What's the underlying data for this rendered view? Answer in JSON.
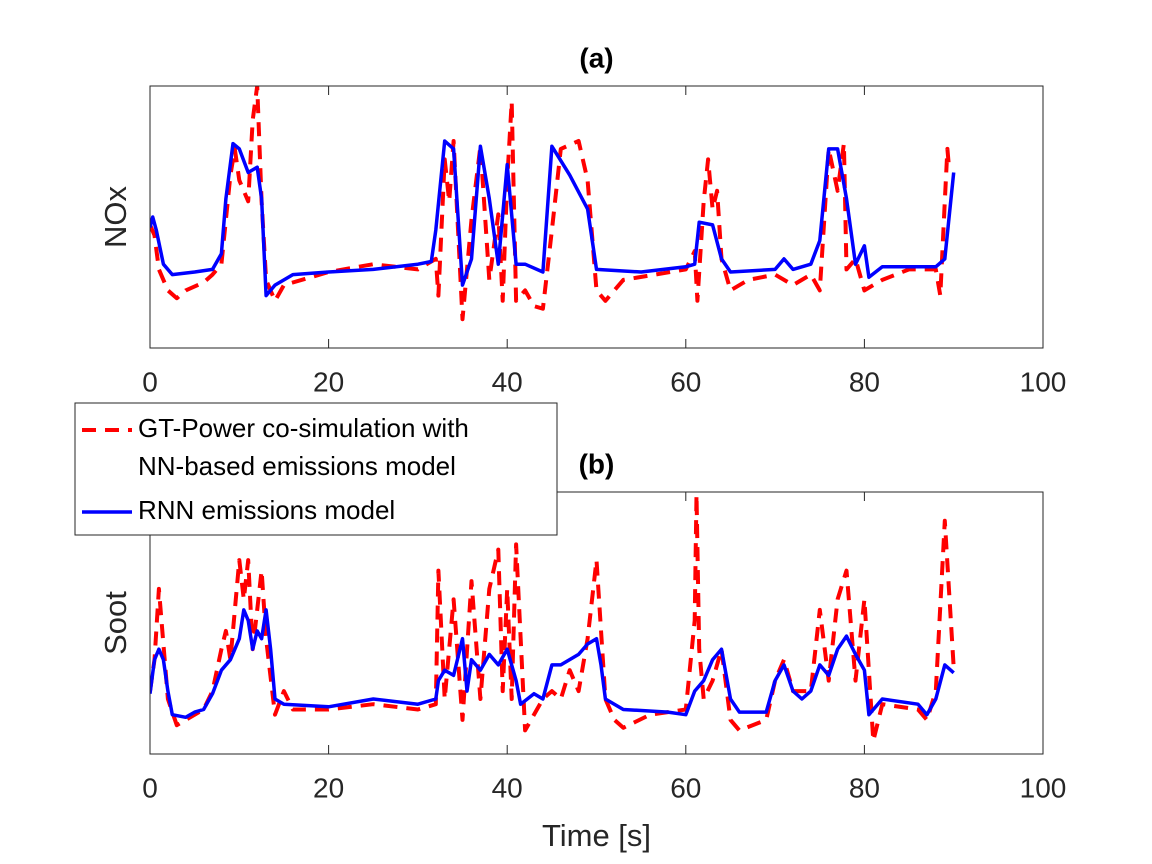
{
  "chart_data": [
    {
      "type": "line",
      "title": "(a)",
      "ylabel": "NOx",
      "xlim": [
        0,
        100
      ],
      "xticks": [
        0,
        20,
        40,
        60,
        80,
        100
      ],
      "ylim": [
        0,
        1
      ],
      "series": [
        {
          "name": "GT-Power co-simulation with\nNN-based emissions model",
          "color": "#ff0000",
          "dashed": true,
          "x": [
            0,
            0.5,
            1,
            2,
            3,
            4,
            6,
            7,
            8,
            9,
            9.5,
            10,
            11,
            11.5,
            12,
            12.5,
            13,
            14,
            15,
            20,
            25,
            30,
            32,
            32.3,
            33,
            33.5,
            34,
            35,
            36,
            37,
            38,
            39,
            39.5,
            40,
            40.5,
            41,
            42,
            43,
            44,
            45,
            46,
            48,
            49,
            50,
            51,
            53,
            60,
            61,
            61.3,
            62,
            62.5,
            63,
            63.5,
            64,
            65,
            67,
            70,
            72,
            74,
            75,
            76,
            77,
            77.7,
            78,
            79,
            80,
            81,
            82,
            85,
            88,
            88.5,
            89,
            89.3,
            89.5
          ],
          "values": [
            0.47,
            0.43,
            0.3,
            0.22,
            0.19,
            0.22,
            0.25,
            0.28,
            0.32,
            0.66,
            0.76,
            0.64,
            0.56,
            0.87,
            1.0,
            0.56,
            0.26,
            0.18,
            0.24,
            0.29,
            0.32,
            0.3,
            0.34,
            0.2,
            0.72,
            0.56,
            0.79,
            0.11,
            0.49,
            0.77,
            0.26,
            0.51,
            0.18,
            0.64,
            0.94,
            0.18,
            0.22,
            0.16,
            0.15,
            0.45,
            0.76,
            0.79,
            0.64,
            0.22,
            0.18,
            0.26,
            0.3,
            0.37,
            0.18,
            0.56,
            0.72,
            0.53,
            0.6,
            0.34,
            0.22,
            0.26,
            0.28,
            0.24,
            0.28,
            0.22,
            0.76,
            0.6,
            0.78,
            0.3,
            0.34,
            0.22,
            0.24,
            0.26,
            0.3,
            0.3,
            0.2,
            0.56,
            0.76,
            0.68
          ]
        },
        {
          "name": "RNN emissions model",
          "color": "#0000ff",
          "dashed": false,
          "x": [
            0,
            0.3,
            0.7,
            1.5,
            2.5,
            5,
            7,
            8,
            8.5,
            9.3,
            10,
            11,
            12,
            12.5,
            13,
            14,
            16,
            20,
            25,
            30,
            31.5,
            32,
            33,
            34,
            35,
            36,
            37,
            38,
            39,
            40,
            41,
            42,
            44,
            45,
            47,
            49,
            50,
            55,
            60,
            61,
            61.5,
            63,
            64,
            65,
            70,
            71,
            72,
            74,
            75,
            76,
            77,
            78,
            79,
            80,
            80.5,
            82,
            85,
            88,
            89,
            90
          ],
          "values": [
            0.46,
            0.5,
            0.45,
            0.32,
            0.28,
            0.29,
            0.3,
            0.36,
            0.57,
            0.78,
            0.76,
            0.67,
            0.69,
            0.57,
            0.2,
            0.24,
            0.28,
            0.29,
            0.3,
            0.32,
            0.33,
            0.45,
            0.79,
            0.76,
            0.24,
            0.34,
            0.77,
            0.57,
            0.32,
            0.7,
            0.32,
            0.32,
            0.29,
            0.77,
            0.66,
            0.53,
            0.3,
            0.29,
            0.31,
            0.32,
            0.48,
            0.47,
            0.34,
            0.29,
            0.3,
            0.34,
            0.3,
            0.32,
            0.41,
            0.76,
            0.76,
            0.57,
            0.32,
            0.39,
            0.27,
            0.31,
            0.31,
            0.31,
            0.34,
            0.67
          ]
        }
      ]
    },
    {
      "type": "line",
      "title": "(b)",
      "ylabel": "Soot",
      "xlabel": "Time [s]",
      "xlim": [
        0,
        100
      ],
      "xticks": [
        0,
        20,
        40,
        60,
        80,
        100
      ],
      "ylim": [
        0,
        1
      ],
      "series": [
        {
          "color": "#ff0000",
          "dashed": true,
          "x": [
            0,
            0.5,
            1,
            2,
            3,
            4,
            6,
            7,
            8,
            8.5,
            9,
            10,
            10.5,
            11,
            11.5,
            12,
            12.5,
            13,
            14,
            15,
            16,
            20,
            25,
            30,
            32,
            32.3,
            33,
            34,
            35,
            36,
            37,
            38,
            39,
            39.5,
            40,
            40.5,
            41,
            42,
            44,
            45,
            46,
            47,
            48,
            49,
            50,
            51,
            52,
            53,
            56,
            60,
            61,
            61.2,
            61.5,
            62,
            63,
            64,
            65,
            66,
            69,
            70,
            71,
            72,
            74,
            75,
            76,
            77,
            78,
            79,
            80,
            81,
            82,
            86,
            87,
            88,
            89,
            90
          ],
          "values": [
            0.24,
            0.36,
            0.63,
            0.21,
            0.11,
            0.13,
            0.17,
            0.24,
            0.4,
            0.47,
            0.36,
            0.74,
            0.59,
            0.74,
            0.4,
            0.55,
            0.7,
            0.44,
            0.15,
            0.24,
            0.17,
            0.17,
            0.19,
            0.17,
            0.19,
            0.7,
            0.21,
            0.59,
            0.13,
            0.66,
            0.21,
            0.63,
            0.78,
            0.24,
            0.63,
            0.21,
            0.8,
            0.09,
            0.21,
            0.24,
            0.21,
            0.32,
            0.24,
            0.44,
            0.74,
            0.21,
            0.13,
            0.1,
            0.15,
            0.17,
            0.51,
            0.99,
            0.4,
            0.21,
            0.28,
            0.4,
            0.13,
            0.09,
            0.13,
            0.28,
            0.36,
            0.24,
            0.24,
            0.55,
            0.28,
            0.59,
            0.7,
            0.28,
            0.59,
            0.05,
            0.19,
            0.17,
            0.13,
            0.24,
            0.89,
            0.33
          ]
        },
        {
          "color": "#0000ff",
          "dashed": false,
          "x": [
            0,
            0.5,
            1,
            1.5,
            2,
            2.5,
            4,
            5,
            6,
            7,
            8,
            9,
            10,
            10.5,
            11,
            11.5,
            12,
            12.5,
            13,
            13.5,
            14,
            15,
            20,
            25,
            30,
            32,
            32.3,
            33,
            34,
            35,
            35.5,
            36,
            37,
            38,
            39,
            40,
            41,
            41.5,
            43,
            44,
            45,
            46,
            48,
            49,
            50,
            50.5,
            51,
            53,
            58,
            60,
            61,
            62,
            63,
            64,
            65,
            66,
            69,
            70,
            71,
            72,
            73,
            74,
            75,
            76,
            77,
            78,
            79,
            80,
            80.5,
            82,
            86,
            87,
            88,
            89,
            90
          ],
          "values": [
            0.23,
            0.36,
            0.4,
            0.36,
            0.24,
            0.15,
            0.14,
            0.16,
            0.17,
            0.23,
            0.32,
            0.36,
            0.44,
            0.55,
            0.51,
            0.4,
            0.47,
            0.44,
            0.55,
            0.4,
            0.21,
            0.19,
            0.18,
            0.21,
            0.19,
            0.21,
            0.28,
            0.32,
            0.3,
            0.44,
            0.24,
            0.36,
            0.32,
            0.38,
            0.34,
            0.4,
            0.28,
            0.19,
            0.23,
            0.21,
            0.34,
            0.34,
            0.38,
            0.42,
            0.44,
            0.34,
            0.21,
            0.17,
            0.16,
            0.15,
            0.24,
            0.28,
            0.36,
            0.4,
            0.21,
            0.16,
            0.16,
            0.28,
            0.34,
            0.24,
            0.21,
            0.24,
            0.34,
            0.3,
            0.4,
            0.45,
            0.38,
            0.32,
            0.15,
            0.21,
            0.19,
            0.15,
            0.21,
            0.34,
            0.31
          ]
        }
      ]
    }
  ]
}
